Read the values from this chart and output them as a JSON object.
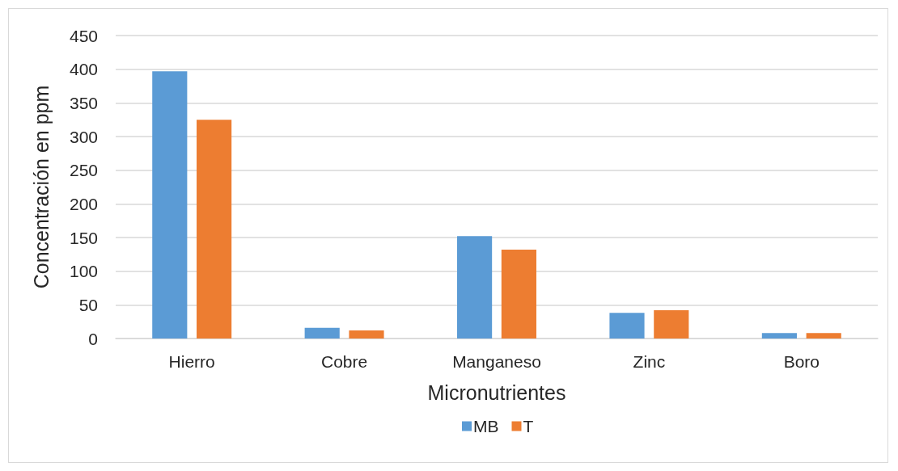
{
  "chart_data": {
    "type": "bar",
    "xlabel": "Micronutrientes",
    "ylabel": "Concentración en ppm",
    "categories": [
      "Hierro",
      "Cobre",
      "Manganeso",
      "Zinc",
      "Boro"
    ],
    "series": [
      {
        "name": "MB",
        "color": "#5b9bd5",
        "values": [
          397,
          16,
          152,
          38,
          8
        ]
      },
      {
        "name": "T",
        "color": "#ed7d31",
        "values": [
          325,
          12,
          132,
          42,
          8
        ]
      }
    ],
    "ylim": [
      0,
      450
    ],
    "yticks": [
      0,
      50,
      100,
      150,
      200,
      250,
      300,
      350,
      400,
      450
    ],
    "grid": "y",
    "legend": "bottom"
  }
}
